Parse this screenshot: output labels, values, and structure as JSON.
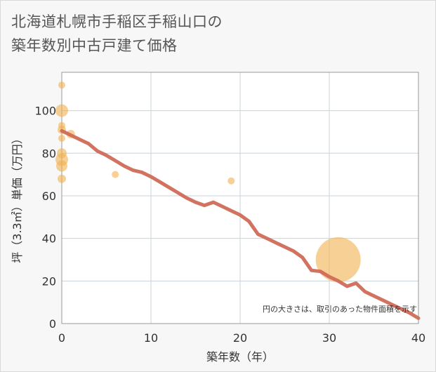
{
  "title": {
    "line1": "北海道札幌市手稲区手稲山口の",
    "line2": "築年数別中古戸建て価格"
  },
  "chart_data": {
    "type": "scatter",
    "xlabel": "築年数（年）",
    "ylabel": "坪（3.3㎡）単価（万円）",
    "xlim": [
      0,
      40
    ],
    "ylim": [
      0,
      118
    ],
    "xticks": [
      0,
      10,
      20,
      30,
      40
    ],
    "yticks": [
      0,
      20,
      40,
      60,
      80,
      100
    ],
    "xtick_labels": [
      "0",
      "10",
      "20",
      "30",
      "40"
    ],
    "ytick_labels": [
      "0",
      "20",
      "40",
      "60",
      "80",
      "100"
    ],
    "note": "円の大きさは、取引のあった物件面積を示す",
    "colors": {
      "bubble": "#f2b04e",
      "line": "#d06a58",
      "grid": "#c9d3da",
      "plot_bg": "#ffffff"
    },
    "points": [
      {
        "x": 0,
        "y": 112,
        "size": 5
      },
      {
        "x": 0,
        "y": 100,
        "size": 9
      },
      {
        "x": 0,
        "y": 93,
        "size": 5
      },
      {
        "x": 0,
        "y": 91,
        "size": 6
      },
      {
        "x": 1,
        "y": 89,
        "size": 6
      },
      {
        "x": 0,
        "y": 87,
        "size": 5
      },
      {
        "x": 0,
        "y": 80,
        "size": 7
      },
      {
        "x": 0,
        "y": 77,
        "size": 9
      },
      {
        "x": 0,
        "y": 74,
        "size": 8
      },
      {
        "x": 0,
        "y": 68,
        "size": 6
      },
      {
        "x": 6,
        "y": 70,
        "size": 5
      },
      {
        "x": 19,
        "y": 67,
        "size": 5
      },
      {
        "x": 31,
        "y": 30,
        "size": 32
      }
    ],
    "series": [
      {
        "name": "trend",
        "x": [
          0,
          1,
          2,
          3,
          4,
          5,
          6,
          7,
          8,
          9,
          10,
          11,
          12,
          13,
          14,
          15,
          16,
          17,
          18,
          19,
          20,
          21,
          22,
          23,
          24,
          25,
          26,
          27,
          28,
          29,
          30,
          31,
          32,
          33,
          34,
          35,
          36,
          37,
          38,
          39,
          40
        ],
        "y": [
          90.5,
          88.5,
          86.5,
          84.5,
          81,
          79,
          76.5,
          74,
          72,
          71,
          69,
          66.5,
          64,
          61.5,
          59,
          57,
          55.5,
          57,
          55,
          53,
          51,
          48,
          42,
          40,
          38,
          36,
          34,
          31,
          25,
          24.5,
          22,
          20,
          17.5,
          19,
          15,
          13,
          11,
          9,
          7,
          5,
          2.5
        ]
      }
    ]
  }
}
